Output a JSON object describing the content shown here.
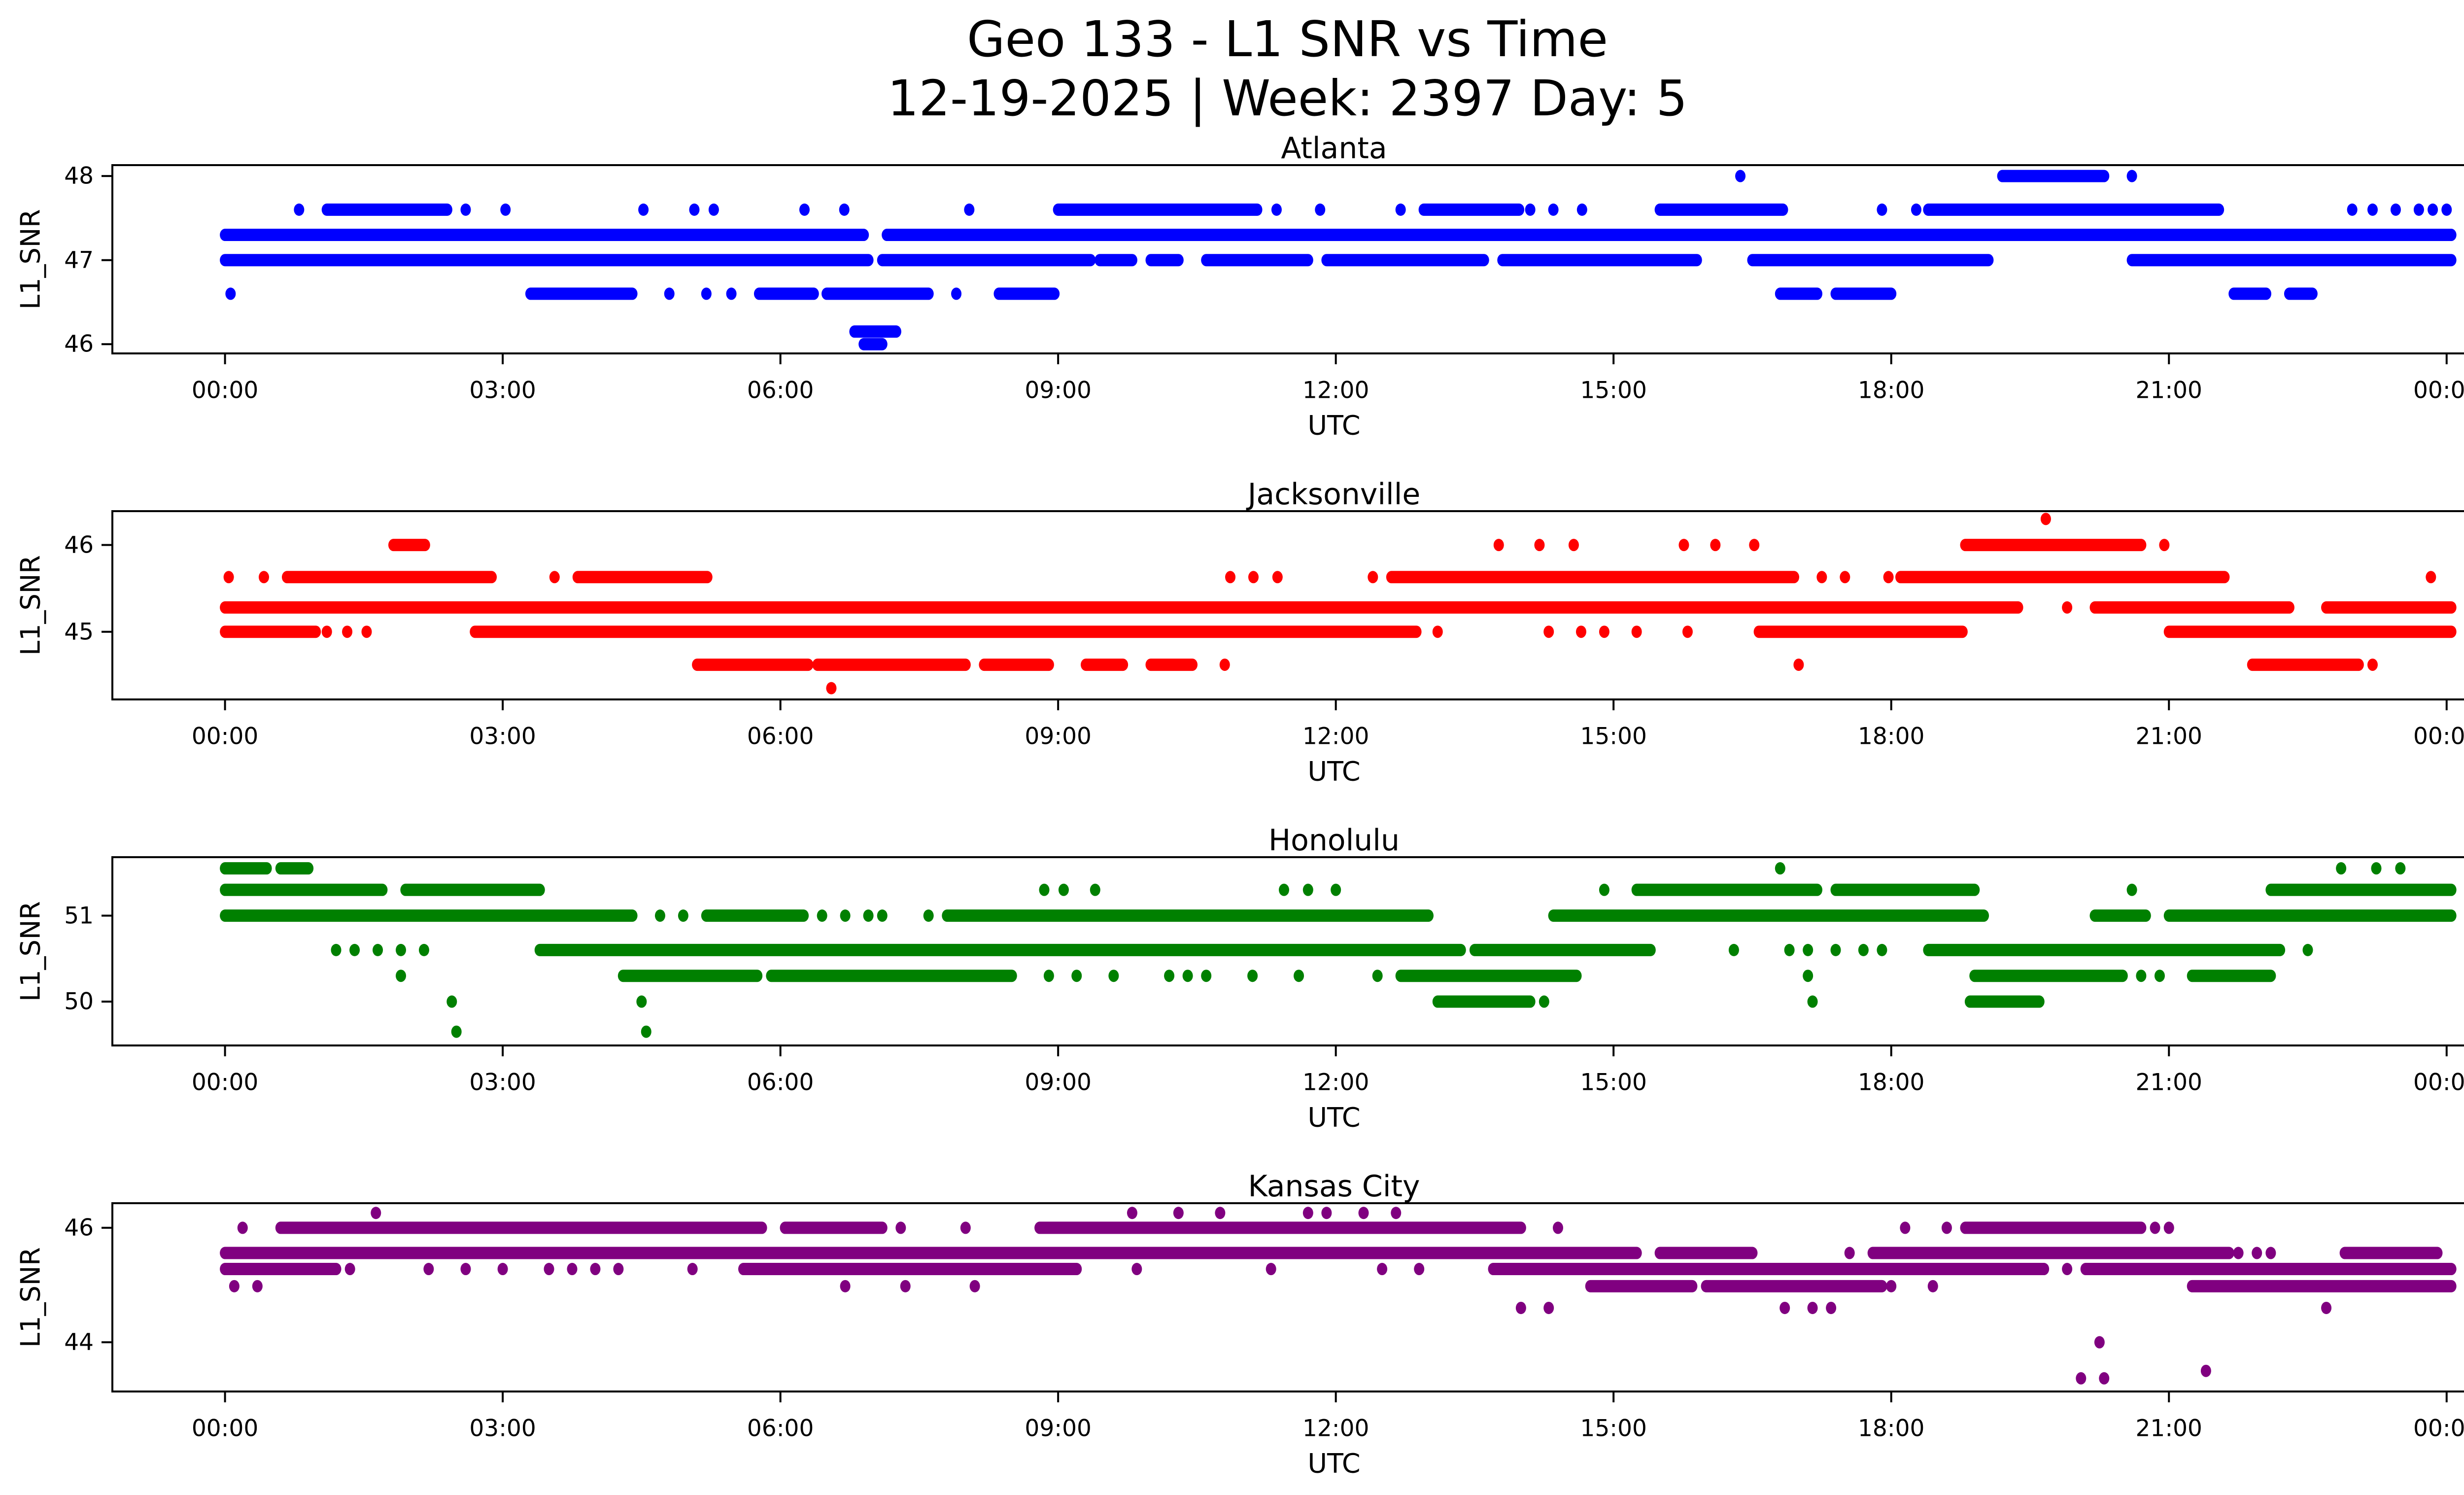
{
  "title": {
    "line1": "Geo 133 - L1 SNR vs Time",
    "line2": "12-19-2025 | Week: 2397 Day: 5"
  },
  "figure": {
    "xlabel": "UTC",
    "ylabel": "L1_SNR",
    "background": "#ffffff",
    "axis_color": "#000000",
    "xtick_labels": [
      "00:00",
      "03:00",
      "06:00",
      "09:00",
      "12:00",
      "15:00",
      "18:00",
      "21:00",
      "00:00"
    ],
    "xtick_hours": [
      0,
      3,
      6,
      9,
      12,
      15,
      18,
      21,
      24
    ]
  },
  "chart_data": [
    {
      "type": "scatter",
      "title": "Atlanta",
      "color": "#0000ff",
      "xlabel": "UTC",
      "ylabel": "L1_SNR",
      "x_unit": "hours UTC, 0 = 00:00",
      "xlim": [
        -1.2,
        25.2
      ],
      "ylim": [
        45.89,
        48.13
      ],
      "yticks": [
        46,
        47,
        48
      ],
      "xticks": [
        0,
        3,
        6,
        9,
        12,
        15,
        18,
        21,
        24
      ],
      "xtick_labels": [
        "00:00",
        "03:00",
        "06:00",
        "09:00",
        "12:00",
        "15:00",
        "18:00",
        "21:00",
        "00:00"
      ],
      "grid": false,
      "legend": "none",
      "snr_levels": [
        {
          "y": 48.0,
          "runs": [
            [
              19.2,
              20.3
            ]
          ],
          "points": [
            16.37,
            20.6
          ]
        },
        {
          "y": 47.6,
          "runs": [
            [
              1.1,
              2.4
            ],
            [
              9.0,
              11.15
            ],
            [
              12.95,
              13.98
            ],
            [
              15.5,
              16.83
            ],
            [
              18.4,
              21.54
            ]
          ],
          "points": [
            0.8,
            2.6,
            3.03,
            4.52,
            5.07,
            5.28,
            6.26,
            6.69,
            8.04,
            11.36,
            11.83,
            12.7,
            14.1,
            14.35,
            14.66,
            17.9,
            18.27,
            22.98,
            23.2,
            23.45,
            23.7,
            23.85,
            24.0
          ]
        },
        {
          "y": 47.3,
          "runs": [
            [
              0.0,
              6.9
            ],
            [
              7.15,
              24.05
            ]
          ],
          "points": []
        },
        {
          "y": 47.0,
          "runs": [
            [
              0.0,
              6.95
            ],
            [
              7.1,
              9.35
            ],
            [
              9.45,
              9.8
            ],
            [
              10.0,
              10.3
            ],
            [
              10.6,
              11.7
            ],
            [
              11.9,
              13.6
            ],
            [
              13.8,
              15.9
            ],
            [
              16.5,
              19.05
            ],
            [
              20.6,
              24.05
            ]
          ],
          "points": []
        },
        {
          "y": 46.6,
          "runs": [
            [
              3.3,
              4.4
            ],
            [
              5.77,
              6.36
            ],
            [
              6.5,
              7.6
            ],
            [
              8.36,
              8.96
            ],
            [
              16.8,
              17.2
            ],
            [
              17.4,
              18.0
            ],
            [
              21.7,
              22.05
            ],
            [
              22.3,
              22.55
            ]
          ],
          "points": [
            0.06,
            4.8,
            5.2,
            5.47,
            7.9
          ]
        },
        {
          "y": 46.15,
          "runs": [
            [
              6.8,
              7.25
            ]
          ],
          "points": []
        },
        {
          "y": 46.0,
          "runs": [
            [
              6.9,
              7.1
            ]
          ],
          "points": []
        }
      ]
    },
    {
      "type": "scatter",
      "title": "Jacksonville",
      "color": "#ff0000",
      "xlabel": "UTC",
      "ylabel": "L1_SNR",
      "x_unit": "hours UTC, 0 = 00:00",
      "xlim": [
        -1.2,
        25.2
      ],
      "ylim": [
        44.22,
        46.39
      ],
      "yticks": [
        45,
        46
      ],
      "xticks": [
        0,
        3,
        6,
        9,
        12,
        15,
        18,
        21,
        24
      ],
      "xtick_labels": [
        "00:00",
        "03:00",
        "06:00",
        "09:00",
        "12:00",
        "15:00",
        "18:00",
        "21:00",
        "00:00"
      ],
      "grid": false,
      "legend": "none",
      "snr_levels": [
        {
          "y": 46.3,
          "runs": [],
          "points": [
            19.67
          ]
        },
        {
          "y": 46.0,
          "runs": [
            [
              1.82,
              2.16
            ],
            [
              18.8,
              20.7
            ]
          ],
          "points": [
            13.76,
            14.2,
            14.57,
            15.76,
            16.1,
            16.52,
            20.95
          ]
        },
        {
          "y": 45.63,
          "runs": [
            [
              0.67,
              2.88
            ],
            [
              3.81,
              5.21
            ],
            [
              12.6,
              16.95
            ],
            [
              18.1,
              21.6
            ]
          ],
          "points": [
            0.04,
            0.42,
            3.56,
            10.86,
            11.11,
            11.37,
            12.4,
            17.25,
            17.5,
            17.97,
            23.83
          ]
        },
        {
          "y": 45.28,
          "runs": [
            [
              0.0,
              19.37
            ],
            [
              20.2,
              22.3
            ],
            [
              22.7,
              24.05
            ]
          ],
          "points": [
            19.9
          ]
        },
        {
          "y": 45.0,
          "runs": [
            [
              0.0,
              0.98
            ],
            [
              2.7,
              12.87
            ],
            [
              16.57,
              18.77
            ],
            [
              21.0,
              24.05
            ]
          ],
          "points": [
            1.1,
            1.32,
            1.53,
            13.1,
            14.3,
            14.65,
            14.9,
            15.25,
            15.8
          ]
        },
        {
          "y": 44.62,
          "runs": [
            [
              5.1,
              6.3
            ],
            [
              6.4,
              8.0
            ],
            [
              8.2,
              8.9
            ],
            [
              9.3,
              9.7
            ],
            [
              10.0,
              10.45
            ],
            [
              21.9,
              23.05
            ]
          ],
          "points": [
            10.8,
            17.0,
            23.2
          ]
        },
        {
          "y": 44.35,
          "runs": [],
          "points": [
            6.55
          ]
        }
      ]
    },
    {
      "type": "scatter",
      "title": "Honolulu",
      "color": "#008000",
      "xlabel": "UTC",
      "ylabel": "L1_SNR",
      "x_unit": "hours UTC, 0 = 00:00",
      "xlim": [
        -1.2,
        25.2
      ],
      "ylim": [
        49.49,
        51.68
      ],
      "yticks": [
        50,
        51
      ],
      "xticks": [
        0,
        3,
        6,
        9,
        12,
        15,
        18,
        21,
        24
      ],
      "xtick_labels": [
        "00:00",
        "03:00",
        "06:00",
        "09:00",
        "12:00",
        "15:00",
        "18:00",
        "21:00",
        "00:00"
      ],
      "grid": false,
      "legend": "none",
      "snr_levels": [
        {
          "y": 51.55,
          "runs": [
            [
              0.0,
              0.45
            ],
            [
              0.6,
              0.9
            ]
          ],
          "points": [
            16.8,
            22.86,
            23.24,
            23.5
          ]
        },
        {
          "y": 51.3,
          "runs": [
            [
              0.0,
              1.7
            ],
            [
              1.95,
              3.4
            ],
            [
              15.25,
              17.2
            ],
            [
              17.4,
              18.9
            ],
            [
              22.1,
              24.05
            ]
          ],
          "points": [
            8.85,
            9.06,
            9.4,
            11.44,
            11.7,
            12.0,
            14.9,
            20.6
          ]
        },
        {
          "y": 51.0,
          "runs": [
            [
              0.0,
              4.4
            ],
            [
              5.2,
              6.25
            ],
            [
              7.8,
              13.0
            ],
            [
              14.35,
              19.0
            ],
            [
              20.2,
              20.75
            ],
            [
              21.0,
              24.05
            ]
          ],
          "points": [
            4.7,
            4.95,
            6.45,
            6.7,
            6.95,
            7.1,
            7.6
          ]
        },
        {
          "y": 50.6,
          "runs": [
            [
              3.4,
              13.35
            ],
            [
              13.5,
              15.4
            ],
            [
              18.4,
              22.2
            ]
          ],
          "points": [
            1.2,
            1.4,
            1.65,
            1.9,
            2.15,
            16.3,
            16.9,
            17.1,
            17.4,
            17.7,
            17.9,
            22.5
          ]
        },
        {
          "y": 50.3,
          "runs": [
            [
              4.3,
              5.75
            ],
            [
              5.9,
              8.5
            ],
            [
              12.7,
              14.6
            ],
            [
              18.9,
              20.5
            ],
            [
              21.25,
              22.1
            ]
          ],
          "points": [
            1.9,
            8.9,
            9.2,
            9.6,
            10.2,
            10.4,
            10.6,
            11.1,
            11.6,
            12.45,
            17.1,
            20.7,
            20.9
          ]
        },
        {
          "y": 50.0,
          "runs": [
            [
              13.1,
              14.1
            ],
            [
              18.85,
              19.6
            ]
          ],
          "points": [
            2.45,
            4.5,
            14.25,
            17.15
          ]
        },
        {
          "y": 49.65,
          "runs": [],
          "points": [
            2.5,
            4.55
          ]
        }
      ]
    },
    {
      "type": "scatter",
      "title": "Kansas City",
      "color": "#800080",
      "xlabel": "UTC",
      "ylabel": "L1_SNR",
      "x_unit": "hours UTC, 0 = 00:00",
      "xlim": [
        -1.2,
        25.2
      ],
      "ylim": [
        43.14,
        46.43
      ],
      "yticks": [
        44,
        46
      ],
      "xticks": [
        0,
        3,
        6,
        9,
        12,
        15,
        18,
        21,
        24
      ],
      "xtick_labels": [
        "00:00",
        "03:00",
        "06:00",
        "09:00",
        "12:00",
        "15:00",
        "18:00",
        "21:00",
        "00:00"
      ],
      "grid": false,
      "legend": "none",
      "snr_levels": [
        {
          "y": 46.26,
          "runs": [],
          "points": [
            1.63,
            9.8,
            10.3,
            10.75,
            11.7,
            11.9,
            12.3,
            12.65
          ]
        },
        {
          "y": 46.0,
          "runs": [
            [
              0.6,
              5.8
            ],
            [
              6.05,
              7.1
            ],
            [
              8.8,
              14.0
            ],
            [
              18.8,
              20.7
            ]
          ],
          "points": [
            0.19,
            7.3,
            8.0,
            14.4,
            18.15,
            18.6,
            20.85,
            21.0
          ]
        },
        {
          "y": 45.56,
          "runs": [
            [
              0.0,
              15.25
            ],
            [
              15.5,
              16.5
            ],
            [
              17.8,
              21.65
            ],
            [
              22.9,
              23.9
            ]
          ],
          "points": [
            17.55,
            21.75,
            21.95,
            22.1
          ]
        },
        {
          "y": 45.28,
          "runs": [
            [
              0.0,
              1.2
            ],
            [
              5.6,
              9.2
            ],
            [
              13.7,
              19.65
            ],
            [
              20.1,
              24.05
            ]
          ],
          "points": [
            1.35,
            2.2,
            2.6,
            3.0,
            3.5,
            3.75,
            4.0,
            4.25,
            5.05,
            9.85,
            11.3,
            12.5,
            12.9,
            19.9
          ]
        },
        {
          "y": 44.98,
          "runs": [
            [
              14.75,
              15.85
            ],
            [
              16.0,
              17.9
            ],
            [
              21.25,
              24.05
            ]
          ],
          "points": [
            0.1,
            0.35,
            6.7,
            7.35,
            8.1,
            18.0,
            18.45
          ]
        },
        {
          "y": 44.6,
          "runs": [],
          "points": [
            14.0,
            14.3,
            16.85,
            17.15,
            17.35,
            22.7
          ]
        },
        {
          "y": 44.0,
          "runs": [],
          "points": [
            20.25
          ]
        },
        {
          "y": 43.5,
          "runs": [],
          "points": [
            21.4
          ]
        },
        {
          "y": 43.37,
          "runs": [],
          "points": [
            20.05,
            20.3
          ]
        }
      ]
    }
  ]
}
